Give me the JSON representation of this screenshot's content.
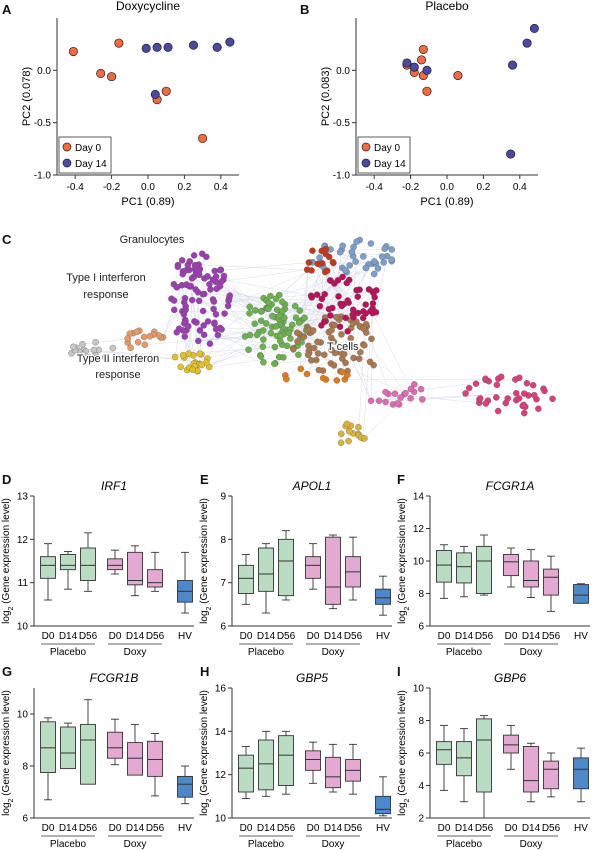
{
  "panel_letters": [
    "A",
    "B",
    "C",
    "D",
    "E",
    "F",
    "G",
    "H",
    "I"
  ],
  "colors": {
    "day0": "#f26b43",
    "day14": "#4b4aa0",
    "placebo_box": "#b9dcc3",
    "doxy_box": "#e3a9d2",
    "hv_box": "#4d88c8",
    "network_edge": "#c8cde0"
  },
  "network": {
    "labels": [
      "Granulocytes",
      "Type I interferon",
      "response",
      "Type II interferon",
      "response",
      "T cells"
    ],
    "cluster_colors": [
      "#9b3fb0",
      "#e0c12a",
      "#c6c6c6",
      "#e59a6a",
      "#6db04f",
      "#a9784f",
      "#7c9ec9",
      "#b7125a",
      "#d8407a",
      "#c23a1c",
      "#e07a20",
      "#d9b43a",
      "#e06bb5"
    ]
  },
  "chart_data": [
    {
      "type": "scatter",
      "panel": "A",
      "title": "Doxycycline",
      "xlabel": "PC1 (0.89)",
      "ylabel": "PC2 (0.078)",
      "xlim": [
        -0.5,
        0.5
      ],
      "ylim": [
        -1.0,
        0.5
      ],
      "xticks": [
        "-0.4",
        "-0.2",
        "0.0",
        "0.2",
        "0.4"
      ],
      "yticks": [
        "-1.0",
        "-0.5",
        "0.0"
      ],
      "legend_position": "bottom-left",
      "series": [
        {
          "name": "Day 0",
          "points": [
            [
              -0.41,
              0.18
            ],
            [
              -0.16,
              0.26
            ],
            [
              -0.26,
              -0.03
            ],
            [
              -0.2,
              -0.06
            ],
            [
              0.1,
              -0.2
            ],
            [
              0.05,
              -0.28
            ],
            [
              0.3,
              -0.65
            ]
          ]
        },
        {
          "name": "Day 14",
          "points": [
            [
              -0.01,
              0.21
            ],
            [
              0.05,
              0.22
            ],
            [
              0.11,
              0.22
            ],
            [
              0.25,
              0.24
            ],
            [
              0.38,
              0.22
            ],
            [
              0.45,
              0.27
            ],
            [
              0.04,
              -0.23
            ]
          ]
        }
      ]
    },
    {
      "type": "scatter",
      "panel": "B",
      "title": "Placebo",
      "xlabel": "PC1 (0.89)",
      "ylabel": "PC2 (0.083)",
      "xlim": [
        -0.5,
        0.5
      ],
      "ylim": [
        -1.0,
        0.5
      ],
      "xticks": [
        "-0.4",
        "-0.2",
        "0.0",
        "0.2",
        "0.4"
      ],
      "yticks": [
        "-1.0",
        "-0.5",
        "0.0"
      ],
      "legend_position": "bottom-left",
      "series": [
        {
          "name": "Day 0",
          "points": [
            [
              -0.13,
              0.2
            ],
            [
              -0.22,
              0.05
            ],
            [
              -0.18,
              -0.02
            ],
            [
              -0.13,
              -0.05
            ],
            [
              -0.14,
              0.1
            ],
            [
              0.06,
              -0.05
            ],
            [
              -0.11,
              -0.2
            ]
          ]
        },
        {
          "name": "Day 14",
          "points": [
            [
              -0.22,
              0.07
            ],
            [
              -0.18,
              0.03
            ],
            [
              -0.11,
              0.0
            ],
            [
              0.36,
              0.05
            ],
            [
              0.44,
              0.26
            ],
            [
              0.48,
              0.4
            ],
            [
              0.35,
              -0.8
            ]
          ]
        }
      ]
    },
    {
      "type": "box",
      "panel": "D",
      "title": "IRF1",
      "ylabel": "log2 (Gene expression level)",
      "ylim": [
        10,
        13
      ],
      "yticks": [
        "10",
        "11",
        "12",
        "13"
      ],
      "categories": [
        "D0",
        "D14",
        "D56",
        "D0",
        "D14",
        "D56",
        "HV"
      ],
      "groups": [
        "Placebo",
        "Doxy"
      ],
      "boxes": [
        [
          10.6,
          11.1,
          11.4,
          11.6,
          11.9
        ],
        [
          10.85,
          11.3,
          11.4,
          11.65,
          11.72
        ],
        [
          10.8,
          11.05,
          11.4,
          11.8,
          12.15
        ],
        [
          11.2,
          11.3,
          11.4,
          11.55,
          11.75
        ],
        [
          10.7,
          10.95,
          11.05,
          11.7,
          11.85
        ],
        [
          10.8,
          10.9,
          11.0,
          11.3,
          11.7
        ],
        [
          10.3,
          10.55,
          10.8,
          11.05,
          11.7
        ]
      ]
    },
    {
      "type": "box",
      "panel": "E",
      "title": "APOL1",
      "ylabel": "log2 (Gene expression level)",
      "ylim": [
        6,
        9
      ],
      "yticks": [
        "6",
        "7",
        "8",
        "9"
      ],
      "categories": [
        "D0",
        "D14",
        "D56",
        "D0",
        "D14",
        "D56",
        "HV"
      ],
      "groups": [
        "Placebo",
        "Doxy"
      ],
      "boxes": [
        [
          6.5,
          6.75,
          7.1,
          7.4,
          7.65
        ],
        [
          6.3,
          6.8,
          7.2,
          7.8,
          7.9
        ],
        [
          6.6,
          6.7,
          7.5,
          8.0,
          8.2
        ],
        [
          6.85,
          7.1,
          7.4,
          7.6,
          7.9
        ],
        [
          6.4,
          6.5,
          6.9,
          8.05,
          8.1
        ],
        [
          6.6,
          6.9,
          7.25,
          7.6,
          8.05
        ],
        [
          6.25,
          6.5,
          6.65,
          6.85,
          7.15
        ]
      ]
    },
    {
      "type": "box",
      "panel": "F",
      "title": "FCGR1A",
      "ylabel": "log2 (Gene expression level)",
      "ylim": [
        6,
        14
      ],
      "yticks": [
        "6",
        "8",
        "10",
        "12",
        "14"
      ],
      "categories": [
        "D0",
        "D14",
        "D56",
        "D0",
        "D14",
        "D56",
        "HV"
      ],
      "groups": [
        "Placebo",
        "Doxy"
      ],
      "boxes": [
        [
          7.7,
          8.7,
          9.75,
          10.65,
          11.0
        ],
        [
          7.8,
          8.65,
          9.65,
          10.5,
          10.9
        ],
        [
          7.9,
          8.0,
          10.0,
          10.9,
          11.6
        ],
        [
          8.4,
          9.1,
          9.95,
          10.4,
          10.8
        ],
        [
          7.75,
          8.4,
          8.8,
          10.0,
          10.7
        ],
        [
          6.9,
          7.9,
          9.0,
          9.5,
          10.3
        ],
        [
          7.4,
          7.4,
          7.9,
          8.55,
          8.6
        ]
      ]
    },
    {
      "type": "box",
      "panel": "G",
      "title": "FCGR1B",
      "ylabel": "log2 (Gene expression level)",
      "ylim": [
        6,
        11
      ],
      "yticks": [
        "6",
        "8",
        "10"
      ],
      "categories": [
        "D0",
        "D14",
        "D56",
        "D0",
        "D14",
        "D56",
        "HV"
      ],
      "groups": [
        "Placebo",
        "Doxy"
      ],
      "boxes": [
        [
          6.7,
          7.75,
          8.7,
          9.7,
          9.85
        ],
        [
          7.95,
          7.9,
          8.5,
          9.5,
          9.65
        ],
        [
          7.55,
          7.3,
          9.0,
          9.6,
          10.55
        ],
        [
          8.05,
          8.3,
          8.7,
          9.3,
          9.8
        ],
        [
          7.8,
          7.65,
          8.3,
          8.9,
          9.6
        ],
        [
          6.85,
          7.6,
          8.25,
          8.95,
          9.25
        ],
        [
          6.55,
          6.8,
          7.3,
          7.6,
          8.0
        ]
      ]
    },
    {
      "type": "box",
      "panel": "H",
      "title": "GBP5",
      "ylabel": "log2 (Gene expression level)",
      "ylim": [
        10,
        16
      ],
      "yticks": [
        "10",
        "12",
        "14",
        "16"
      ],
      "categories": [
        "D0",
        "D14",
        "D56",
        "D0",
        "D14",
        "D56",
        "HV"
      ],
      "groups": [
        "Placebo",
        "Doxy"
      ],
      "boxes": [
        [
          10.9,
          11.2,
          12.3,
          12.9,
          13.3
        ],
        [
          11.0,
          11.3,
          12.5,
          13.6,
          14.0
        ],
        [
          11.1,
          11.5,
          12.9,
          13.8,
          14.0
        ],
        [
          11.6,
          12.2,
          12.7,
          13.1,
          13.5
        ],
        [
          11.2,
          11.4,
          11.9,
          12.8,
          13.4
        ],
        [
          11.1,
          11.7,
          12.2,
          12.7,
          13.4
        ],
        [
          10.1,
          10.2,
          10.4,
          11.0,
          11.9
        ]
      ]
    },
    {
      "type": "box",
      "panel": "I",
      "title": "GBP6",
      "ylabel": "log2 (Gene expression level)",
      "ylim": [
        2,
        10
      ],
      "yticks": [
        "2",
        "4",
        "6",
        "8",
        "10"
      ],
      "categories": [
        "D0",
        "D14",
        "D56",
        "D0",
        "D14",
        "D56",
        "HV"
      ],
      "groups": [
        "Placebo",
        "Doxy"
      ],
      "boxes": [
        [
          3.7,
          5.3,
          6.2,
          6.7,
          7.7
        ],
        [
          3.0,
          4.6,
          5.7,
          6.7,
          7.5
        ],
        [
          2.0,
          3.6,
          6.8,
          8.1,
          8.3
        ],
        [
          5.0,
          6.0,
          6.5,
          7.1,
          7.7
        ],
        [
          3.0,
          3.6,
          4.3,
          6.4,
          6.6
        ],
        [
          3.3,
          3.8,
          5.0,
          5.5,
          6.0
        ],
        [
          3.0,
          3.8,
          5.0,
          5.7,
          6.3
        ]
      ]
    }
  ]
}
